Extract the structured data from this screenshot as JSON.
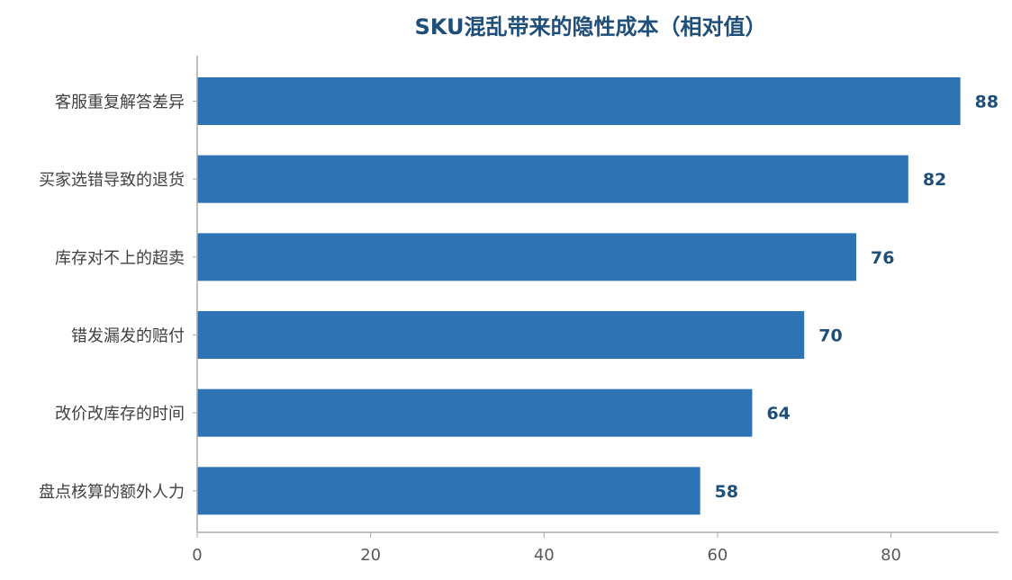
{
  "chart_data": {
    "type": "bar",
    "orientation": "horizontal",
    "title": "SKU混乱带来的隐性成本（相对值）",
    "categories": [
      "客服重复解答差异",
      "买家选错导致的退货",
      "库存对不上的超卖",
      "错发漏发的赔付",
      "改价改库存的时间",
      "盘点核算的额外人力"
    ],
    "values": [
      88,
      82,
      76,
      70,
      64,
      58
    ],
    "value_labels": [
      "88",
      "82",
      "76",
      "70",
      "64",
      "58"
    ],
    "xlim": [
      0,
      92.4
    ],
    "xticks": [
      0,
      20,
      40,
      60,
      80
    ],
    "xtick_labels": [
      "0",
      "20",
      "40",
      "60",
      "80"
    ],
    "xlabel": "",
    "ylabel": "",
    "grid": false,
    "legend": "none",
    "colors": {
      "bar": "#2e74b5",
      "title": "#1f4e79",
      "value_label": "#1f4e79",
      "axis": "#aaaaaa",
      "category_text": "#404040",
      "tick_text": "#595959"
    }
  }
}
